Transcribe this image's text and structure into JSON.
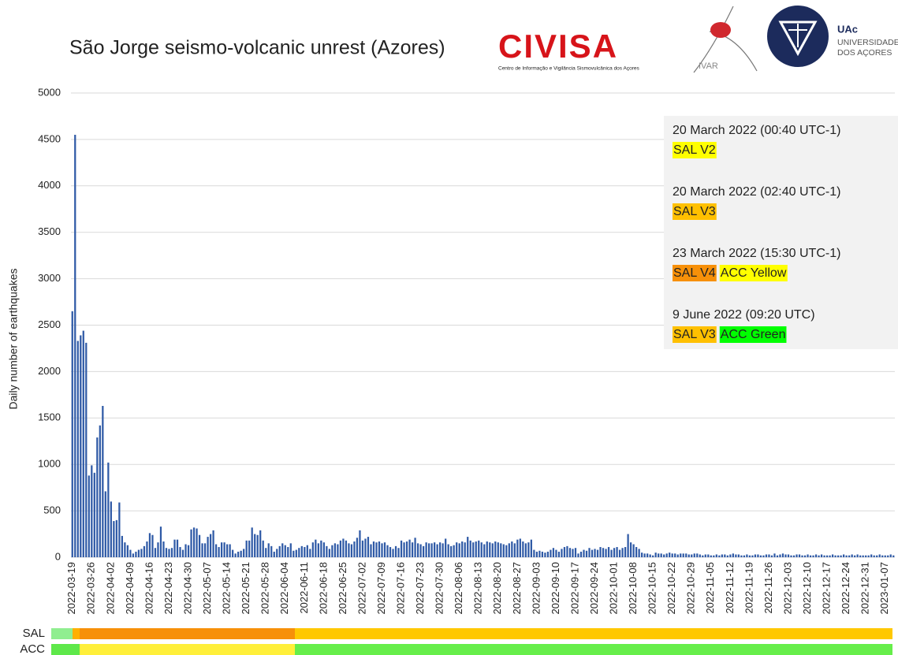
{
  "chart_data": {
    "type": "bar",
    "title": "São Jorge seismo-volcanic unrest (Azores)",
    "ylabel": "Daily number of earthquakes",
    "color": "#2f5aa6",
    "ylim": [
      0,
      5000
    ],
    "yticks": [
      0,
      500,
      1000,
      1500,
      2000,
      2500,
      3000,
      3500,
      4000,
      4500,
      5000
    ],
    "grid": true,
    "categories": [
      "2022-03-19",
      null,
      null,
      null,
      null,
      null,
      null,
      "2022-03-26",
      null,
      null,
      null,
      null,
      null,
      null,
      "2022-04-02",
      null,
      null,
      null,
      null,
      null,
      null,
      "2022-04-09",
      null,
      null,
      null,
      null,
      null,
      null,
      "2022-04-16",
      null,
      null,
      null,
      null,
      null,
      null,
      "2022-04-23",
      null,
      null,
      null,
      null,
      null,
      null,
      "2022-04-30",
      null,
      null,
      null,
      null,
      null,
      null,
      "2022-05-07",
      null,
      null,
      null,
      null,
      null,
      null,
      "2022-05-14",
      null,
      null,
      null,
      null,
      null,
      null,
      "2022-05-21",
      null,
      null,
      null,
      null,
      null,
      null,
      "2022-05-28",
      null,
      null,
      null,
      null,
      null,
      null,
      "2022-06-04",
      null,
      null,
      null,
      null,
      null,
      null,
      "2022-06-11",
      null,
      null,
      null,
      null,
      null,
      null,
      "2022-06-18",
      null,
      null,
      null,
      null,
      null,
      null,
      "2022-06-25",
      null,
      null,
      null,
      null,
      null,
      null,
      "2022-07-02",
      null,
      null,
      null,
      null,
      null,
      null,
      "2022-07-09",
      null,
      null,
      null,
      null,
      null,
      null,
      "2022-07-16",
      null,
      null,
      null,
      null,
      null,
      null,
      "2022-07-23",
      null,
      null,
      null,
      null,
      null,
      null,
      "2022-07-30",
      null,
      null,
      null,
      null,
      null,
      null,
      "2022-08-06",
      null,
      null,
      null,
      null,
      null,
      null,
      "2022-08-13",
      null,
      null,
      null,
      null,
      null,
      null,
      "2022-08-20",
      null,
      null,
      null,
      null,
      null,
      null,
      "2022-08-27",
      null,
      null,
      null,
      null,
      null,
      null,
      "2022-09-03",
      null,
      null,
      null,
      null,
      null,
      null,
      "2022-09-10",
      null,
      null,
      null,
      null,
      null,
      null,
      "2022-09-17",
      null,
      null,
      null,
      null,
      null,
      null,
      "2022-09-24",
      null,
      null,
      null,
      null,
      null,
      null,
      "2022-10-01",
      null,
      null,
      null,
      null,
      null,
      null,
      "2022-10-08",
      null,
      null,
      null,
      null,
      null,
      null,
      "2022-10-15",
      null,
      null,
      null,
      null,
      null,
      null,
      "2022-10-22",
      null,
      null,
      null,
      null,
      null,
      null,
      "2022-10-29",
      null,
      null,
      null,
      null,
      null,
      null,
      "2022-11-05",
      null,
      null,
      null,
      null,
      null,
      null,
      "2022-11-12",
      null,
      null,
      null,
      null,
      null,
      null,
      "2022-11-19",
      null,
      null,
      null,
      null,
      null,
      null,
      "2022-11-26",
      null,
      null,
      null,
      null,
      null,
      null,
      "2022-12-03",
      null,
      null,
      null,
      null,
      null,
      null,
      "2022-12-10",
      null,
      null,
      null,
      null,
      null,
      null,
      "2022-12-17",
      null,
      null,
      null,
      null,
      null,
      null,
      "2022-12-24",
      null,
      null,
      null,
      null,
      null,
      null,
      "2022-12-31",
      null,
      null,
      null,
      null,
      null,
      null,
      "2023-01-07",
      null,
      null,
      null
    ],
    "values": [
      2650,
      4550,
      2330,
      2390,
      2440,
      2310,
      880,
      990,
      910,
      1290,
      1420,
      1630,
      710,
      1020,
      600,
      390,
      400,
      590,
      230,
      160,
      130,
      80,
      40,
      60,
      80,
      90,
      120,
      170,
      260,
      240,
      100,
      160,
      330,
      170,
      100,
      90,
      100,
      190,
      190,
      110,
      80,
      140,
      130,
      300,
      320,
      310,
      240,
      150,
      150,
      220,
      250,
      290,
      140,
      110,
      160,
      160,
      140,
      140,
      80,
      40,
      60,
      70,
      90,
      180,
      180,
      320,
      250,
      240,
      290,
      180,
      100,
      150,
      120,
      60,
      90,
      120,
      150,
      130,
      110,
      150,
      70,
      80,
      100,
      120,
      110,
      130,
      90,
      160,
      190,
      150,
      180,
      160,
      120,
      90,
      130,
      150,
      140,
      180,
      200,
      180,
      150,
      140,
      170,
      210,
      290,
      180,
      200,
      220,
      140,
      170,
      160,
      170,
      150,
      160,
      130,
      110,
      90,
      120,
      100,
      180,
      160,
      170,
      190,
      160,
      210,
      150,
      140,
      120,
      160,
      150,
      150,
      160,
      140,
      160,
      150,
      200,
      140,
      120,
      130,
      160,
      150,
      170,
      160,
      220,
      180,
      160,
      170,
      180,
      160,
      140,
      170,
      160,
      150,
      170,
      160,
      150,
      140,
      130,
      150,
      170,
      150,
      190,
      200,
      170,
      150,
      160,
      190,
      80,
      60,
      70,
      60,
      50,
      60,
      80,
      100,
      80,
      60,
      90,
      110,
      120,
      100,
      90,
      100,
      40,
      60,
      80,
      70,
      100,
      80,
      90,
      80,
      110,
      100,
      90,
      110,
      80,
      100,
      110,
      80,
      100,
      110,
      250,
      160,
      140,
      110,
      90,
      50,
      40,
      40,
      30,
      20,
      50,
      40,
      40,
      30,
      40,
      50,
      40,
      40,
      30,
      40,
      40,
      40,
      30,
      30,
      40,
      40,
      30,
      20,
      30,
      30,
      20,
      20,
      30,
      20,
      30,
      30,
      20,
      30,
      40,
      30,
      30,
      20,
      20,
      30,
      20,
      20,
      30,
      30,
      20,
      20,
      30,
      30,
      20,
      40,
      20,
      30,
      40,
      30,
      30,
      20,
      20,
      30,
      30,
      20,
      20,
      30,
      20,
      20,
      30,
      20,
      30,
      20,
      20,
      20,
      30,
      20,
      20,
      20,
      30,
      20,
      20,
      30,
      20,
      30,
      20,
      20,
      20,
      20,
      30,
      20,
      20,
      30,
      20,
      20,
      20,
      30,
      20
    ],
    "annotations": [
      {
        "date": "20 March 2022 (00:40 UTC-1)",
        "tags": [
          {
            "text": "SAL V2",
            "color": "#ffff00"
          }
        ]
      },
      {
        "date": "20 March 2022 (02:40 UTC-1)",
        "tags": [
          {
            "text": "SAL V3",
            "color": "#ffc000"
          }
        ]
      },
      {
        "date": "23 March 2022 (15:30 UTC-1)",
        "tags": [
          {
            "text": "SAL V4",
            "color": "#f79009"
          },
          {
            "text": "ACC Yellow",
            "color": "#ffff00"
          }
        ]
      },
      {
        "date": "9 June 2022 (09:20 UTC)",
        "tags": [
          {
            "text": "SAL V3",
            "color": "#ffc000"
          },
          {
            "text": "ACC Green",
            "color": "#00ff00"
          }
        ]
      }
    ],
    "timeline_labels": [
      "SAL",
      "ACC"
    ]
  },
  "logos": {
    "civisa": "CIVISA",
    "civisa_subtitle": "Centro de Informação e Vigilância Sismovulcânica dos Açores",
    "ivar": "IVAR",
    "uac": "UAc",
    "uac_line1": "UNIVERSIDADE",
    "uac_line2": "DOS AÇORES"
  }
}
